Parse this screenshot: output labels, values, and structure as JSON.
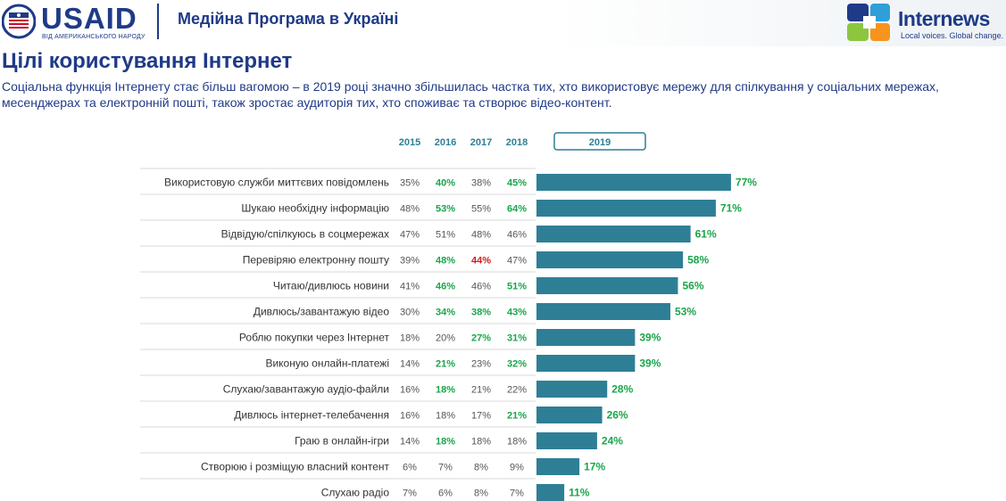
{
  "header": {
    "usaid_wordmark": "USAID",
    "usaid_subtitle": "ВІД АМЕРИКАНСЬКОГО НАРОДУ",
    "program_title": "Медійна Програма в Україні",
    "internews_wordmark": "Internews",
    "internews_tagline": "Local voices. Global change."
  },
  "page": {
    "title": "Цілі користування Інтернет",
    "subtitle": "Соціальна функція Інтернету стає більш вагомою   – в 2019 році значно збільшилась частка тих, хто використовує мережу для спілкування у соціальних мережах, месенджерах та електронній пошті,  також  зростає аудиторія тих, хто споживає та створює відео-контент."
  },
  "colors": {
    "brand_blue": "#1f3a87",
    "bar": "#2e7f96",
    "increase": "#1aa64b",
    "decrease": "#d7191c",
    "neutral": "#555555",
    "year_header": "#2e7f96"
  },
  "chart_data": {
    "type": "bar",
    "orientation": "horizontal",
    "year_headers": [
      "2015",
      "2016",
      "2017",
      "2018"
    ],
    "highlight_year": "2019",
    "categories": [
      "Використовую служби миттєвих повідомлень",
      "Шукаю необхідну інформацію",
      "Відвідую/спілкуюсь в соцмережах",
      "Перевіряю електронну пошту",
      "Читаю/дивлюсь новини",
      "Дивлюсь/завантажую відео",
      "Роблю покупки через Інтернет",
      "Виконую онлайн-платежі",
      "Слухаю/завантажую аудіо-файли",
      "Дивлюсь інтернет-телебачення",
      "Граю в онлайн-ігри",
      "Створюю і розміщую власний контент",
      "Слухаю радіо"
    ],
    "values_2019": [
      77,
      71,
      61,
      58,
      56,
      53,
      39,
      39,
      28,
      26,
      24,
      17,
      11
    ],
    "table": [
      [
        {
          "v": "35%",
          "s": "n"
        },
        {
          "v": "40%",
          "s": "up"
        },
        {
          "v": "38%",
          "s": "n"
        },
        {
          "v": "45%",
          "s": "up"
        }
      ],
      [
        {
          "v": "48%",
          "s": "n"
        },
        {
          "v": "53%",
          "s": "up"
        },
        {
          "v": "55%",
          "s": "n"
        },
        {
          "v": "64%",
          "s": "up"
        }
      ],
      [
        {
          "v": "47%",
          "s": "n"
        },
        {
          "v": "51%",
          "s": "n"
        },
        {
          "v": "48%",
          "s": "n"
        },
        {
          "v": "46%",
          "s": "n"
        }
      ],
      [
        {
          "v": "39%",
          "s": "n"
        },
        {
          "v": "48%",
          "s": "up"
        },
        {
          "v": "44%",
          "s": "down"
        },
        {
          "v": "47%",
          "s": "n"
        }
      ],
      [
        {
          "v": "41%",
          "s": "n"
        },
        {
          "v": "46%",
          "s": "up"
        },
        {
          "v": "46%",
          "s": "n"
        },
        {
          "v": "51%",
          "s": "up"
        }
      ],
      [
        {
          "v": "30%",
          "s": "n"
        },
        {
          "v": "34%",
          "s": "up"
        },
        {
          "v": "38%",
          "s": "up"
        },
        {
          "v": "43%",
          "s": "up"
        }
      ],
      [
        {
          "v": "18%",
          "s": "n"
        },
        {
          "v": "20%",
          "s": "n"
        },
        {
          "v": "27%",
          "s": "up"
        },
        {
          "v": "31%",
          "s": "up"
        }
      ],
      [
        {
          "v": "14%",
          "s": "n"
        },
        {
          "v": "21%",
          "s": "up"
        },
        {
          "v": "23%",
          "s": "n"
        },
        {
          "v": "32%",
          "s": "up"
        }
      ],
      [
        {
          "v": "16%",
          "s": "n"
        },
        {
          "v": "18%",
          "s": "up"
        },
        {
          "v": "21%",
          "s": "n"
        },
        {
          "v": "22%",
          "s": "n"
        }
      ],
      [
        {
          "v": "16%",
          "s": "n"
        },
        {
          "v": "18%",
          "s": "n"
        },
        {
          "v": "17%",
          "s": "n"
        },
        {
          "v": "21%",
          "s": "up"
        }
      ],
      [
        {
          "v": "14%",
          "s": "n"
        },
        {
          "v": "18%",
          "s": "up"
        },
        {
          "v": "18%",
          "s": "n"
        },
        {
          "v": "18%",
          "s": "n"
        }
      ],
      [
        {
          "v": "6%",
          "s": "n"
        },
        {
          "v": "7%",
          "s": "n"
        },
        {
          "v": "8%",
          "s": "n"
        },
        {
          "v": "9%",
          "s": "n"
        }
      ],
      [
        {
          "v": "7%",
          "s": "n"
        },
        {
          "v": "6%",
          "s": "n"
        },
        {
          "v": "8%",
          "s": "n"
        },
        {
          "v": "7%",
          "s": "n"
        }
      ]
    ],
    "bar_value_labels": [
      "77%",
      "71%",
      "61%",
      "58%",
      "56%",
      "53%",
      "39%",
      "39%",
      "28%",
      "26%",
      "24%",
      "17%",
      "11%"
    ],
    "xlim": [
      0,
      100
    ]
  }
}
